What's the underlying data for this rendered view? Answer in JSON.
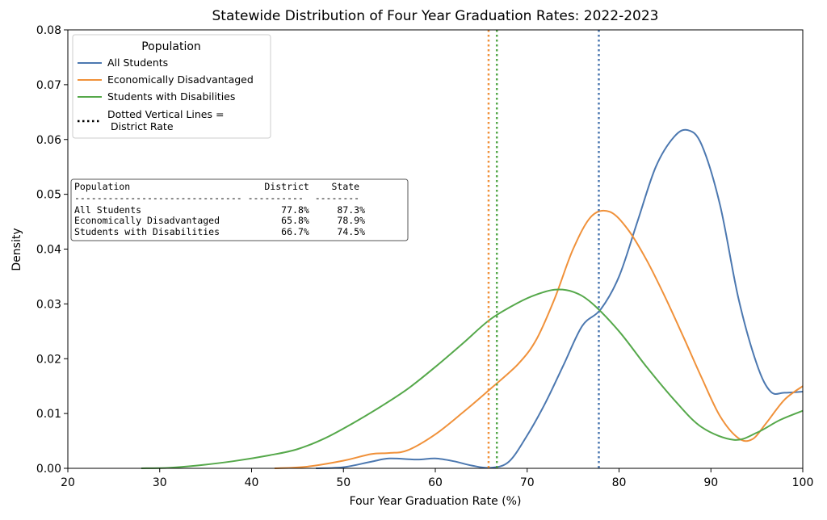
{
  "chart_data": {
    "type": "line",
    "title": "Statewide Distribution of Four Year Graduation Rates: 2022-2023",
    "xlabel": "Four Year Graduation Rate (%)",
    "ylabel": "Density",
    "xlim": [
      20,
      100
    ],
    "ylim": [
      0,
      0.08
    ],
    "xticks": [
      "20",
      "30",
      "40",
      "50",
      "60",
      "70",
      "80",
      "90",
      "100"
    ],
    "yticks": [
      "0.00",
      "0.01",
      "0.02",
      "0.03",
      "0.04",
      "0.05",
      "0.06",
      "0.07",
      "0.08"
    ],
    "grid": false,
    "legend": {
      "title": "Population",
      "placement": "top-left",
      "note": "Dotted Vertical Lines =\n District Rate"
    },
    "series": [
      {
        "name": "All Students",
        "color": "#4c78b0",
        "district_rate": 77.8,
        "x": [
          47,
          50,
          53,
          55,
          58,
          60,
          62,
          64,
          66,
          68,
          70,
          72,
          74,
          76,
          78,
          80,
          82,
          84,
          86,
          87.5,
          89,
          91,
          93,
          95,
          96.5,
          98,
          100
        ],
        "y": [
          0.0,
          0.0002,
          0.0012,
          0.0018,
          0.0016,
          0.0018,
          0.0013,
          0.0005,
          0.0001,
          0.0012,
          0.006,
          0.012,
          0.019,
          0.026,
          0.029,
          0.035,
          0.045,
          0.055,
          0.0605,
          0.0617,
          0.059,
          0.048,
          0.031,
          0.019,
          0.014,
          0.0138,
          0.014
        ]
      },
      {
        "name": "Economically Disadvantaged",
        "color": "#f0913a",
        "district_rate": 65.8,
        "x": [
          42.5,
          46,
          50,
          53,
          55,
          57,
          60,
          63,
          66,
          69,
          71,
          73,
          75,
          77,
          79,
          81,
          83,
          85,
          87,
          89,
          91,
          93,
          94.5,
          96,
          98,
          100
        ],
        "y": [
          0.0,
          0.0003,
          0.0014,
          0.0026,
          0.0028,
          0.0033,
          0.0062,
          0.0102,
          0.0145,
          0.019,
          0.0235,
          0.031,
          0.04,
          0.046,
          0.0468,
          0.0435,
          0.038,
          0.0313,
          0.024,
          0.0165,
          0.0095,
          0.0055,
          0.0053,
          0.0082,
          0.0125,
          0.015
        ]
      },
      {
        "name": "Students with Disabilities",
        "color": "#55a84a",
        "district_rate": 66.7,
        "x": [
          28,
          31,
          34,
          38,
          42,
          45,
          48,
          51,
          54,
          57,
          60,
          63,
          66,
          69,
          71,
          73,
          75,
          77,
          80,
          83,
          86,
          89,
          92.5,
          95,
          97.5,
          100
        ],
        "y": [
          0.0,
          0.0001,
          0.0005,
          0.0013,
          0.0024,
          0.0035,
          0.0055,
          0.0082,
          0.0112,
          0.0145,
          0.0185,
          0.0228,
          0.0272,
          0.0302,
          0.0317,
          0.0326,
          0.0322,
          0.0302,
          0.025,
          0.0185,
          0.0125,
          0.0075,
          0.0052,
          0.0065,
          0.0088,
          0.0105
        ]
      }
    ],
    "summary_table": {
      "header": "Population                        District    State",
      "separator": "------------------------------ ----------  --------",
      "rows": [
        "All Students                         77.8%     87.3%",
        "Economically Disadvantaged           65.8%     78.9%",
        "Students with Disabilities           66.7%     74.5%"
      ]
    }
  }
}
